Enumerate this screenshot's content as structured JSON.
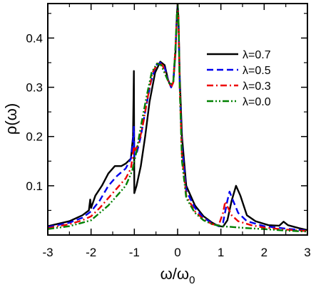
{
  "chart_data": {
    "type": "line",
    "xlabel": "ω/ω",
    "xlabel_sub": "0",
    "ylabel": "ρ(ω)",
    "xlim": [
      -3,
      3
    ],
    "ylim": [
      0,
      0.47
    ],
    "xticks": [
      -3,
      -2,
      -1,
      0,
      1,
      2,
      3
    ],
    "yticks": [
      0.1,
      0.2,
      0.3,
      0.4
    ],
    "xtick_labels": [
      "-3",
      "-2",
      "-1",
      "0",
      "1",
      "2",
      "3"
    ],
    "ytick_labels": [
      "0.1",
      "0.2",
      "0.3",
      "0.4"
    ],
    "legend_position": "upper right",
    "grid": false,
    "series": [
      {
        "name": "λ=0.7",
        "color": "#000000",
        "dash": "solid",
        "points": [
          [
            -3,
            0.018
          ],
          [
            -2.5,
            0.028
          ],
          [
            -2.2,
            0.04
          ],
          [
            -2.05,
            0.05
          ],
          [
            -2.02,
            0.072
          ],
          [
            -2.0,
            0.055
          ],
          [
            -1.9,
            0.08
          ],
          [
            -1.75,
            0.1
          ],
          [
            -1.6,
            0.125
          ],
          [
            -1.45,
            0.14
          ],
          [
            -1.3,
            0.14
          ],
          [
            -1.2,
            0.145
          ],
          [
            -1.08,
            0.155
          ],
          [
            -1.03,
            0.2
          ],
          [
            -1.01,
            0.333
          ],
          [
            -1.0,
            0.085
          ],
          [
            -0.95,
            0.1
          ],
          [
            -0.85,
            0.14
          ],
          [
            -0.75,
            0.2
          ],
          [
            -0.65,
            0.27
          ],
          [
            -0.52,
            0.33
          ],
          [
            -0.4,
            0.352
          ],
          [
            -0.3,
            0.345
          ],
          [
            -0.22,
            0.315
          ],
          [
            -0.15,
            0.3
          ],
          [
            -0.1,
            0.31
          ],
          [
            -0.05,
            0.37
          ],
          [
            -0.02,
            0.44
          ],
          [
            0.0,
            0.47
          ],
          [
            0.02,
            0.44
          ],
          [
            0.05,
            0.32
          ],
          [
            0.1,
            0.2
          ],
          [
            0.2,
            0.1
          ],
          [
            0.4,
            0.06
          ],
          [
            0.6,
            0.038
          ],
          [
            0.8,
            0.025
          ],
          [
            0.95,
            0.018
          ],
          [
            1.05,
            0.017
          ],
          [
            1.15,
            0.03
          ],
          [
            1.25,
            0.07
          ],
          [
            1.35,
            0.1
          ],
          [
            1.45,
            0.08
          ],
          [
            1.6,
            0.04
          ],
          [
            1.8,
            0.028
          ],
          [
            2.1,
            0.02
          ],
          [
            2.35,
            0.019
          ],
          [
            2.45,
            0.027
          ],
          [
            2.55,
            0.02
          ],
          [
            2.8,
            0.014
          ],
          [
            3.0,
            0.01
          ]
        ]
      },
      {
        "name": "λ=0.5",
        "color": "#0000ee",
        "dash": "dash",
        "points": [
          [
            -3,
            0.016
          ],
          [
            -2.5,
            0.025
          ],
          [
            -2.2,
            0.035
          ],
          [
            -2.0,
            0.048
          ],
          [
            -1.8,
            0.07
          ],
          [
            -1.6,
            0.1
          ],
          [
            -1.4,
            0.12
          ],
          [
            -1.2,
            0.135
          ],
          [
            -1.08,
            0.155
          ],
          [
            -1.03,
            0.19
          ],
          [
            -1.01,
            0.22
          ],
          [
            -1.0,
            0.16
          ],
          [
            -0.95,
            0.165
          ],
          [
            -0.85,
            0.2
          ],
          [
            -0.75,
            0.25
          ],
          [
            -0.62,
            0.31
          ],
          [
            -0.5,
            0.345
          ],
          [
            -0.4,
            0.35
          ],
          [
            -0.3,
            0.34
          ],
          [
            -0.22,
            0.315
          ],
          [
            -0.15,
            0.3
          ],
          [
            -0.1,
            0.31
          ],
          [
            -0.05,
            0.38
          ],
          [
            -0.02,
            0.44
          ],
          [
            0.0,
            0.47
          ],
          [
            0.02,
            0.44
          ],
          [
            0.05,
            0.3
          ],
          [
            0.1,
            0.18
          ],
          [
            0.2,
            0.09
          ],
          [
            0.4,
            0.055
          ],
          [
            0.6,
            0.035
          ],
          [
            0.8,
            0.024
          ],
          [
            0.95,
            0.018
          ],
          [
            1.05,
            0.025
          ],
          [
            1.15,
            0.07
          ],
          [
            1.2,
            0.088
          ],
          [
            1.28,
            0.07
          ],
          [
            1.4,
            0.045
          ],
          [
            1.6,
            0.028
          ],
          [
            2.0,
            0.018
          ],
          [
            2.5,
            0.013
          ],
          [
            3.0,
            0.009
          ]
        ]
      },
      {
        "name": "λ=0.3",
        "color": "#ee0000",
        "dash": "dashdot",
        "points": [
          [
            -3,
            0.014
          ],
          [
            -2.5,
            0.022
          ],
          [
            -2.2,
            0.03
          ],
          [
            -2.0,
            0.038
          ],
          [
            -1.8,
            0.055
          ],
          [
            -1.6,
            0.075
          ],
          [
            -1.4,
            0.095
          ],
          [
            -1.2,
            0.115
          ],
          [
            -1.08,
            0.135
          ],
          [
            -1.03,
            0.165
          ],
          [
            -1.01,
            0.18
          ],
          [
            -1.0,
            0.17
          ],
          [
            -0.9,
            0.185
          ],
          [
            -0.8,
            0.225
          ],
          [
            -0.7,
            0.275
          ],
          [
            -0.58,
            0.33
          ],
          [
            -0.45,
            0.35
          ],
          [
            -0.35,
            0.345
          ],
          [
            -0.25,
            0.32
          ],
          [
            -0.15,
            0.3
          ],
          [
            -0.1,
            0.31
          ],
          [
            -0.05,
            0.38
          ],
          [
            -0.02,
            0.44
          ],
          [
            0.0,
            0.47
          ],
          [
            0.02,
            0.44
          ],
          [
            0.05,
            0.3
          ],
          [
            0.1,
            0.16
          ],
          [
            0.2,
            0.08
          ],
          [
            0.4,
            0.048
          ],
          [
            0.6,
            0.032
          ],
          [
            0.8,
            0.022
          ],
          [
            0.95,
            0.02
          ],
          [
            1.05,
            0.045
          ],
          [
            1.1,
            0.068
          ],
          [
            1.15,
            0.058
          ],
          [
            1.25,
            0.04
          ],
          [
            1.4,
            0.028
          ],
          [
            1.7,
            0.02
          ],
          [
            2.0,
            0.015
          ],
          [
            2.5,
            0.011
          ],
          [
            3.0,
            0.008
          ]
        ]
      },
      {
        "name": "λ=0.0",
        "color": "#008000",
        "dash": "dashdotdot",
        "points": [
          [
            -3,
            0.012
          ],
          [
            -2.5,
            0.018
          ],
          [
            -2.2,
            0.025
          ],
          [
            -2.0,
            0.03
          ],
          [
            -1.8,
            0.045
          ],
          [
            -1.6,
            0.06
          ],
          [
            -1.4,
            0.08
          ],
          [
            -1.2,
            0.1
          ],
          [
            -1.05,
            0.13
          ],
          [
            -0.95,
            0.17
          ],
          [
            -0.85,
            0.22
          ],
          [
            -0.72,
            0.28
          ],
          [
            -0.6,
            0.33
          ],
          [
            -0.48,
            0.348
          ],
          [
            -0.38,
            0.345
          ],
          [
            -0.28,
            0.325
          ],
          [
            -0.18,
            0.305
          ],
          [
            -0.1,
            0.31
          ],
          [
            -0.05,
            0.38
          ],
          [
            -0.02,
            0.44
          ],
          [
            0.0,
            0.47
          ],
          [
            0.02,
            0.44
          ],
          [
            0.05,
            0.3
          ],
          [
            0.1,
            0.15
          ],
          [
            0.2,
            0.075
          ],
          [
            0.4,
            0.045
          ],
          [
            0.6,
            0.03
          ],
          [
            0.8,
            0.022
          ],
          [
            1.0,
            0.018
          ],
          [
            1.3,
            0.016
          ],
          [
            1.6,
            0.014
          ],
          [
            2.0,
            0.012
          ],
          [
            2.5,
            0.009
          ],
          [
            3.0,
            0.007
          ]
        ]
      }
    ]
  }
}
